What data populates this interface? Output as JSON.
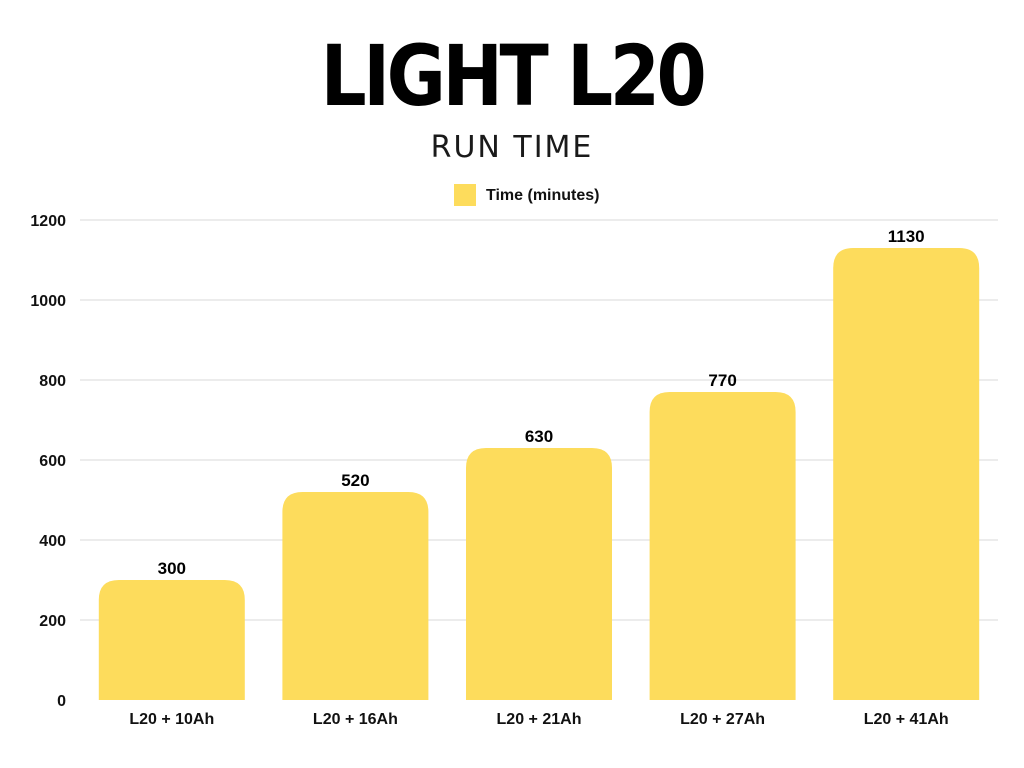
{
  "chart_data": {
    "type": "bar",
    "title": "LIGHT L20",
    "subtitle": "RUN TIME",
    "categories": [
      "L20 + 10Ah",
      "L20 + 16Ah",
      "L20 + 21Ah",
      "L20 + 27Ah",
      "L20 + 41Ah"
    ],
    "series": [
      {
        "name": "Time (minutes)",
        "values": [
          300,
          520,
          630,
          770,
          1130
        ],
        "color": "#FDDC5C"
      }
    ],
    "data_labels": [
      "300",
      "520",
      "630",
      "770",
      "1130"
    ],
    "ylim": [
      0,
      1200
    ],
    "yticks": [
      0,
      200,
      400,
      600,
      800,
      1000,
      1200
    ],
    "xlabel": "",
    "ylabel": "",
    "grid": true,
    "grid_color": "#d9d9d9",
    "legend": "top-center"
  }
}
